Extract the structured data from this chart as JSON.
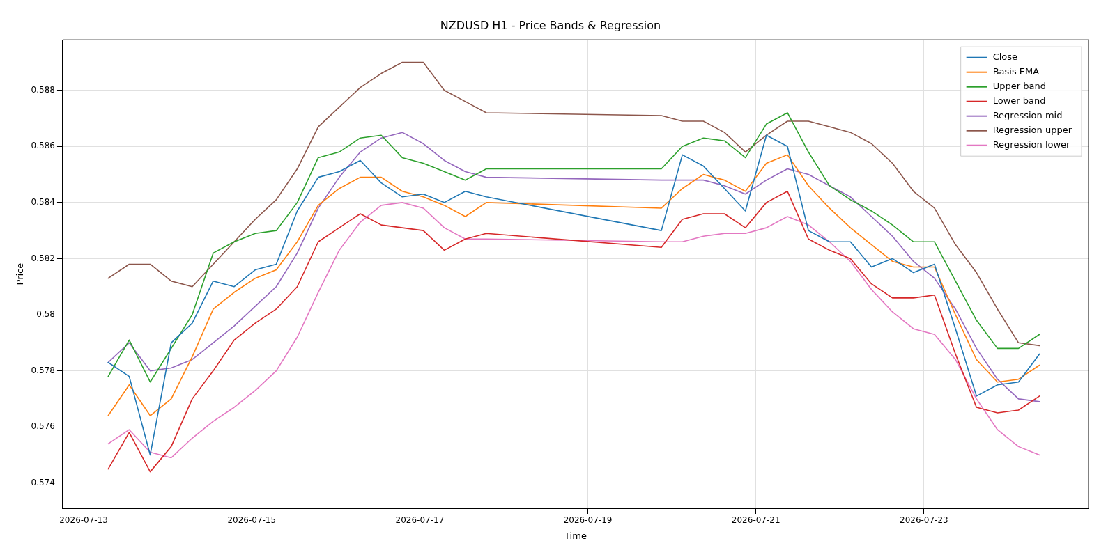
{
  "chart_data": {
    "type": "line",
    "title": "NZDUSD H1 - Price Bands & Regression",
    "xlabel": "Time",
    "ylabel": "Price",
    "x": [
      "2026-07-13T07:00",
      "2026-07-13T13:00",
      "2026-07-13T19:00",
      "2026-07-14T01:00",
      "2026-07-14T07:00",
      "2026-07-14T13:00",
      "2026-07-14T19:00",
      "2026-07-15T01:00",
      "2026-07-15T07:00",
      "2026-07-15T13:00",
      "2026-07-15T19:00",
      "2026-07-16T01:00",
      "2026-07-16T07:00",
      "2026-07-16T13:00",
      "2026-07-16T19:00",
      "2026-07-17T01:00",
      "2026-07-17T07:00",
      "2026-07-17T13:00",
      "2026-07-17T19:00",
      "2026-07-19T21:00",
      "2026-07-20T03:00",
      "2026-07-20T09:00",
      "2026-07-20T15:00",
      "2026-07-20T21:00",
      "2026-07-21T03:00",
      "2026-07-21T09:00",
      "2026-07-21T15:00",
      "2026-07-21T21:00",
      "2026-07-22T03:00",
      "2026-07-22T09:00",
      "2026-07-22T15:00",
      "2026-07-22T21:00",
      "2026-07-23T03:00",
      "2026-07-23T09:00",
      "2026-07-23T15:00",
      "2026-07-23T21:00",
      "2026-07-24T03:00",
      "2026-07-24T09:00"
    ],
    "series": [
      {
        "name": "Close",
        "color": "#1f77b4",
        "values": [
          0.5783,
          0.5778,
          0.575,
          0.579,
          0.5797,
          0.5812,
          0.581,
          0.5816,
          0.5818,
          0.5837,
          0.5849,
          0.5851,
          0.5855,
          0.5847,
          0.5842,
          0.5843,
          0.584,
          0.5844,
          0.5842,
          0.583,
          0.5857,
          0.5853,
          0.5845,
          0.5837,
          0.5864,
          0.586,
          0.583,
          0.5826,
          0.5826,
          0.5817,
          0.582,
          0.5815,
          0.5818,
          0.5795,
          0.5771,
          0.5775,
          0.5776,
          0.5786
        ]
      },
      {
        "name": "Basis EMA",
        "color": "#ff7f0e",
        "values": [
          0.5764,
          0.5775,
          0.5764,
          0.577,
          0.5785,
          0.5802,
          0.5808,
          0.5813,
          0.5816,
          0.5826,
          0.5839,
          0.5845,
          0.5849,
          0.5849,
          0.5844,
          0.5842,
          0.5839,
          0.5835,
          0.584,
          0.5838,
          0.5845,
          0.585,
          0.5848,
          0.5844,
          0.5854,
          0.5857,
          0.5846,
          0.5838,
          0.5831,
          0.5825,
          0.5819,
          0.5817,
          0.5817,
          0.58,
          0.5784,
          0.5776,
          0.5777,
          0.5782
        ]
      },
      {
        "name": "Upper band",
        "color": "#2ca02c",
        "values": [
          0.5778,
          0.5791,
          0.5776,
          0.5788,
          0.58,
          0.5822,
          0.5826,
          0.5829,
          0.583,
          0.584,
          0.5856,
          0.5858,
          0.5863,
          0.5864,
          0.5856,
          0.5854,
          0.5851,
          0.5848,
          0.5852,
          0.5852,
          0.586,
          0.5863,
          0.5862,
          0.5856,
          0.5868,
          0.5872,
          0.5858,
          0.5846,
          0.5841,
          0.5837,
          0.5832,
          0.5826,
          0.5826,
          0.5812,
          0.5798,
          0.5788,
          0.5788,
          0.5793
        ]
      },
      {
        "name": "Lower band",
        "color": "#d62728",
        "values": [
          0.5745,
          0.5758,
          0.5744,
          0.5753,
          0.577,
          0.578,
          0.5791,
          0.5797,
          0.5802,
          0.581,
          0.5826,
          0.5831,
          0.5836,
          0.5832,
          0.5831,
          0.583,
          0.5823,
          0.5827,
          0.5829,
          0.5824,
          0.5834,
          0.5836,
          0.5836,
          0.5831,
          0.584,
          0.5844,
          0.5827,
          0.5823,
          0.582,
          0.5811,
          0.5806,
          0.5806,
          0.5807,
          0.5786,
          0.5767,
          0.5765,
          0.5766,
          0.5771
        ]
      },
      {
        "name": "Regression mid",
        "color": "#9467bd",
        "values": [
          0.5783,
          0.579,
          0.578,
          0.5781,
          0.5784,
          0.579,
          0.5796,
          0.5803,
          0.581,
          0.5822,
          0.5838,
          0.5849,
          0.5858,
          0.5863,
          0.5865,
          0.5861,
          0.5855,
          0.5851,
          0.5849,
          0.5848,
          0.5848,
          0.5848,
          0.5846,
          0.5843,
          0.5848,
          0.5852,
          0.585,
          0.5846,
          0.5842,
          0.5835,
          0.5828,
          0.5819,
          0.5813,
          0.5802,
          0.5788,
          0.5777,
          0.577,
          0.5769
        ]
      },
      {
        "name": "Regression upper",
        "color": "#8c564b",
        "values": [
          0.5813,
          0.5818,
          0.5818,
          0.5812,
          0.581,
          0.5818,
          0.5826,
          0.5834,
          0.5841,
          0.5852,
          0.5867,
          0.5874,
          0.5881,
          0.5886,
          0.589,
          0.589,
          0.588,
          0.5876,
          0.5872,
          0.5871,
          0.5869,
          0.5869,
          0.5865,
          0.5858,
          0.5864,
          0.5869,
          0.5869,
          0.5867,
          0.5865,
          0.5861,
          0.5854,
          0.5844,
          0.5838,
          0.5825,
          0.5815,
          0.5802,
          0.579,
          0.5789
        ]
      },
      {
        "name": "Regression lower",
        "color": "#e377c2",
        "values": [
          0.5754,
          0.5759,
          0.5751,
          0.5749,
          0.5756,
          0.5762,
          0.5767,
          0.5773,
          0.578,
          0.5792,
          0.5808,
          0.5823,
          0.5833,
          0.5839,
          0.584,
          0.5838,
          0.5831,
          0.5827,
          0.5827,
          0.5826,
          0.5826,
          0.5828,
          0.5829,
          0.5829,
          0.5831,
          0.5835,
          0.5832,
          0.5826,
          0.5819,
          0.5809,
          0.5801,
          0.5795,
          0.5793,
          0.5784,
          0.577,
          0.5759,
          0.5753,
          0.575
        ]
      }
    ],
    "xlim": [
      "2026-07-12T18:00",
      "2026-07-24T23:00"
    ],
    "xticks": [
      "2026-07-13",
      "2026-07-15",
      "2026-07-17",
      "2026-07-19",
      "2026-07-21",
      "2026-07-23"
    ],
    "ylim": [
      0.5731,
      0.5898
    ],
    "yticks": [
      0.574,
      0.576,
      0.578,
      0.58,
      0.582,
      0.584,
      0.586,
      0.588
    ],
    "grid": true,
    "legend": "top right",
    "marker": "none",
    "line_style": "solid"
  }
}
